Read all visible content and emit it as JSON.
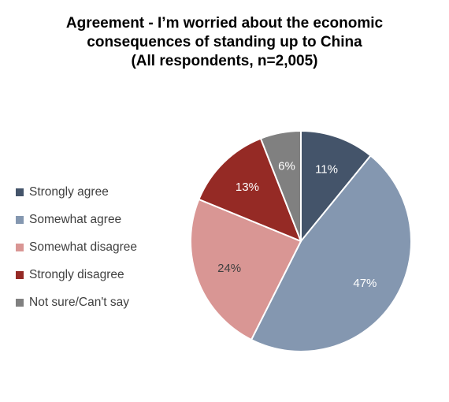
{
  "chart_data": {
    "type": "pie",
    "title_lines": [
      "Agreement - I’m worried about the economic",
      "consequences of standing up to China",
      "(All respondents, n=2,005)"
    ],
    "categories": [
      "Strongly agree",
      "Somewhat agree",
      "Somewhat disagree",
      "Strongly disagree",
      "Not sure/Can't say"
    ],
    "values": [
      11,
      47,
      24,
      13,
      6
    ],
    "data_labels": [
      "11%",
      "47%",
      "24%",
      "13%",
      "6%"
    ],
    "colors": [
      "#44546a",
      "#8497b0",
      "#d99694",
      "#952a25",
      "#808080"
    ],
    "label_colors": [
      "#ffffff",
      "#ffffff",
      "#404040",
      "#ffffff",
      "#ffffff"
    ],
    "legend_position": "left"
  }
}
